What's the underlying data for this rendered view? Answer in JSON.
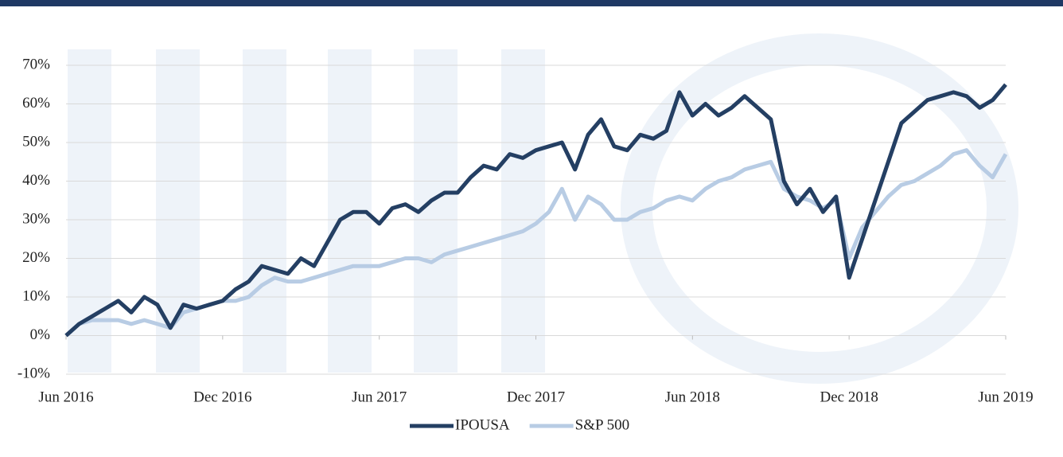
{
  "chart_data": {
    "type": "line",
    "categories": [
      "Jun 2016",
      null,
      null,
      null,
      null,
      null,
      null,
      null,
      null,
      null,
      null,
      null,
      "Dec 2016",
      null,
      null,
      null,
      null,
      null,
      null,
      null,
      null,
      null,
      null,
      null,
      "Jun 2017",
      null,
      null,
      null,
      null,
      null,
      null,
      null,
      null,
      null,
      null,
      null,
      "Dec 2017",
      null,
      null,
      null,
      null,
      null,
      null,
      null,
      null,
      null,
      null,
      null,
      "Jun 2018",
      null,
      null,
      null,
      null,
      null,
      null,
      null,
      null,
      null,
      null,
      null,
      "Dec 2018",
      null,
      null,
      null,
      null,
      null,
      null,
      null,
      null,
      null,
      null,
      null,
      "Jun 2019"
    ],
    "series": [
      {
        "name": "IPOUSA",
        "color": "#243f63",
        "values": [
          0,
          3,
          5,
          7,
          9,
          6,
          10,
          8,
          2,
          8,
          7,
          8,
          9,
          12,
          14,
          18,
          17,
          16,
          20,
          18,
          24,
          30,
          32,
          32,
          29,
          33,
          34,
          32,
          35,
          37,
          37,
          41,
          44,
          43,
          47,
          46,
          48,
          49,
          50,
          43,
          52,
          56,
          49,
          48,
          52,
          51,
          53,
          63,
          57,
          60,
          57,
          59,
          62,
          59,
          56,
          40,
          34,
          38,
          32,
          36,
          15,
          25,
          35,
          45,
          55,
          58,
          61,
          62,
          63,
          62,
          59,
          61,
          65
        ]
      },
      {
        "name": "S&P 500",
        "color": "#b8cce4",
        "values": [
          0,
          3,
          4,
          4,
          4,
          3,
          4,
          3,
          2,
          6,
          7,
          8,
          9,
          9,
          10,
          13,
          15,
          14,
          14,
          15,
          16,
          17,
          18,
          18,
          18,
          19,
          20,
          20,
          19,
          21,
          22,
          23,
          24,
          25,
          26,
          27,
          29,
          32,
          38,
          30,
          36,
          34,
          30,
          30,
          32,
          33,
          35,
          36,
          35,
          38,
          40,
          41,
          43,
          44,
          45,
          38,
          36,
          35,
          33,
          35,
          20,
          28,
          32,
          36,
          39,
          40,
          42,
          44,
          47,
          48,
          44,
          41,
          47
        ]
      }
    ],
    "ylim": [
      -10,
      70
    ],
    "yticks": [
      {
        "value": -10,
        "label": "-10%"
      },
      {
        "value": 0,
        "label": "0%"
      },
      {
        "value": 10,
        "label": "10%"
      },
      {
        "value": 20,
        "label": "20%"
      },
      {
        "value": 30,
        "label": "30%"
      },
      {
        "value": 40,
        "label": "40%"
      },
      {
        "value": 50,
        "label": "50%"
      },
      {
        "value": 60,
        "label": "60%"
      },
      {
        "value": 70,
        "label": "70%"
      }
    ],
    "grid": true
  }
}
